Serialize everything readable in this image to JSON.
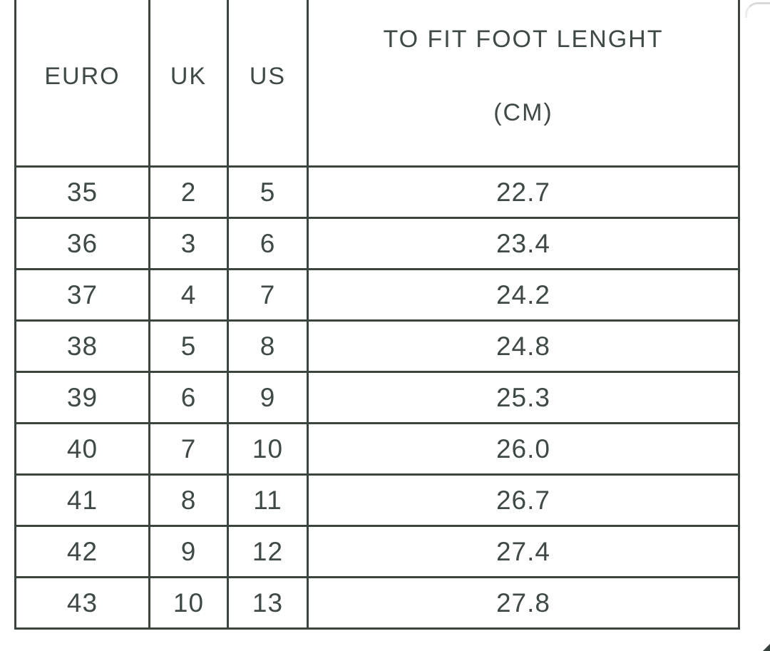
{
  "chart_data": {
    "type": "table",
    "columns": [
      "EURO",
      "UK",
      "US",
      "TO FIT FOOT LENGHT (CM)"
    ],
    "rows": [
      [
        "35",
        "2",
        "5",
        "22.7"
      ],
      [
        "36",
        "3",
        "6",
        "23.4"
      ],
      [
        "37",
        "4",
        "7",
        "24.2"
      ],
      [
        "38",
        "5",
        "8",
        "24.8"
      ],
      [
        "39",
        "6",
        "9",
        "25.3"
      ],
      [
        "40",
        "7",
        "10",
        "26.0"
      ],
      [
        "41",
        "8",
        "11",
        "26.7"
      ],
      [
        "42",
        "9",
        "12",
        "27.4"
      ],
      [
        "43",
        "10",
        "13",
        "27.8"
      ]
    ]
  },
  "header": {
    "euro_label": "EURO",
    "uk_label": "UK",
    "us_label": "US",
    "cm_label_line1": "TO FIT FOOT LENGHT",
    "cm_label_line2": "(CM)"
  },
  "colors": {
    "text": "#3e4a43",
    "border": "#3a453e",
    "background": "#ffffff"
  }
}
